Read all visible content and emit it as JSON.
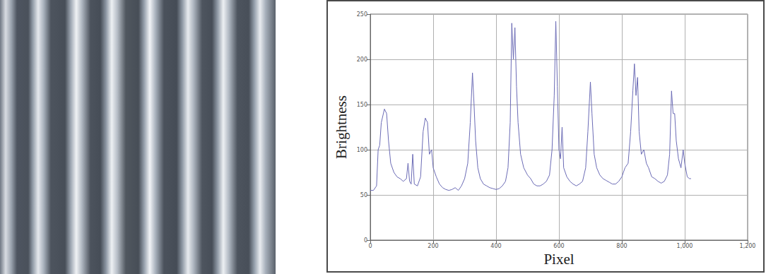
{
  "chart_data": {
    "type": "line",
    "x_label": "Pixel",
    "y_label": "Brightness",
    "color": "#6b6bb5",
    "x": [
      0,
      10,
      20,
      25,
      30,
      35,
      45,
      52,
      58,
      65,
      75,
      85,
      95,
      105,
      115,
      120,
      125,
      130,
      135,
      140,
      150,
      160,
      168,
      175,
      182,
      188,
      195,
      200,
      210,
      220,
      230,
      240,
      250,
      260,
      270,
      280,
      290,
      300,
      310,
      318,
      325,
      330,
      335,
      342,
      350,
      360,
      370,
      380,
      390,
      400,
      410,
      420,
      430,
      438,
      445,
      450,
      455,
      460,
      465,
      470,
      478,
      488,
      500,
      510,
      520,
      530,
      540,
      550,
      560,
      570,
      578,
      585,
      590,
      595,
      600,
      605,
      610,
      615,
      625,
      635,
      645,
      655,
      665,
      675,
      685,
      692,
      700,
      705,
      712,
      720,
      730,
      740,
      750,
      760,
      770,
      780,
      790,
      800,
      810,
      820,
      828,
      835,
      840,
      845,
      850,
      855,
      862,
      870,
      878,
      885,
      895,
      905,
      915,
      925,
      935,
      945,
      952,
      958,
      963,
      968,
      973,
      980,
      988,
      995,
      1000,
      1008,
      1015,
      1020
    ],
    "values": [
      55,
      55,
      60,
      100,
      105,
      130,
      145,
      140,
      110,
      85,
      75,
      70,
      68,
      65,
      68,
      85,
      65,
      62,
      95,
      62,
      60,
      70,
      120,
      135,
      130,
      95,
      100,
      80,
      70,
      62,
      58,
      56,
      55,
      56,
      58,
      55,
      60,
      68,
      85,
      130,
      185,
      150,
      110,
      80,
      68,
      62,
      60,
      58,
      57,
      56,
      57,
      60,
      65,
      80,
      130,
      240,
      200,
      235,
      170,
      130,
      95,
      80,
      72,
      68,
      62,
      60,
      60,
      62,
      65,
      72,
      100,
      160,
      242,
      170,
      100,
      90,
      125,
      80,
      70,
      65,
      62,
      60,
      62,
      65,
      80,
      120,
      175,
      140,
      95,
      80,
      72,
      68,
      66,
      64,
      62,
      62,
      65,
      70,
      80,
      85,
      120,
      165,
      195,
      160,
      180,
      120,
      95,
      100,
      85,
      80,
      70,
      68,
      65,
      63,
      65,
      72,
      95,
      165,
      140,
      140,
      110,
      90,
      80,
      100,
      85,
      70,
      68,
      68
    ],
    "xlim": [
      0,
      1200
    ],
    "xticks": [
      0,
      200,
      400,
      600,
      800,
      1000,
      1200
    ],
    "ylim": [
      0,
      250
    ],
    "yticks": [
      0,
      50,
      100,
      150,
      200,
      250
    ],
    "grid": true
  }
}
